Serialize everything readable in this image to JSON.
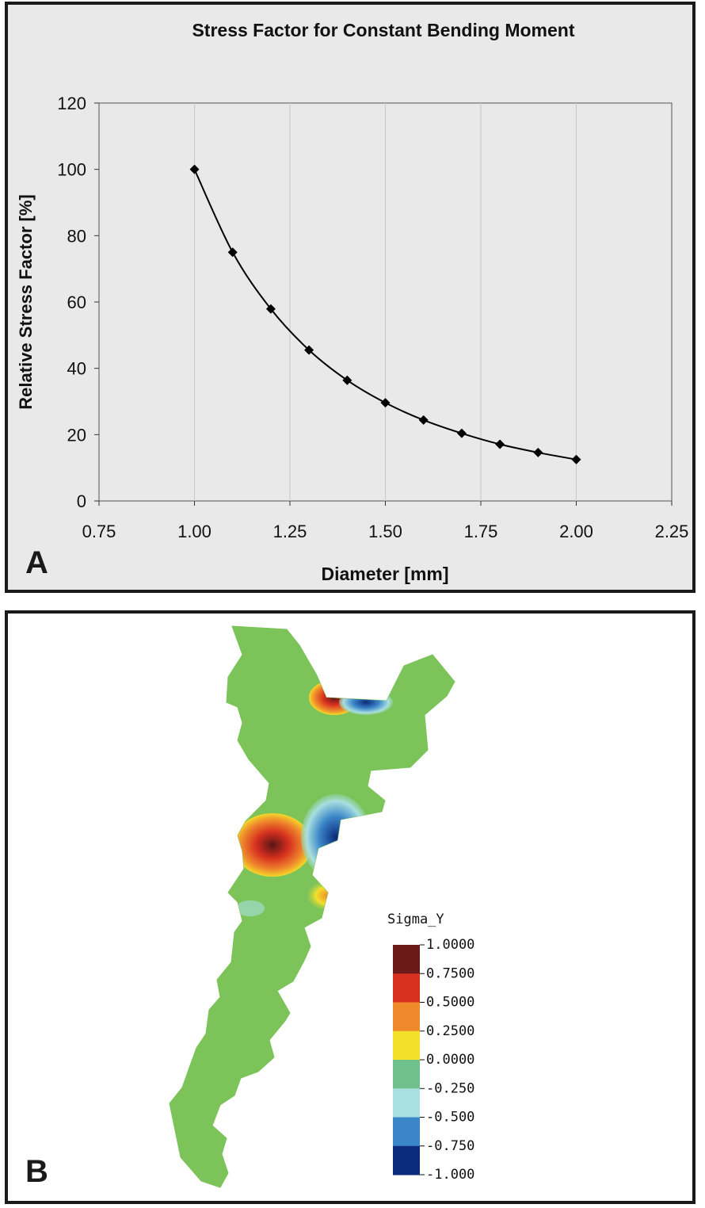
{
  "panels": {
    "a_label": "A",
    "b_label": "B"
  },
  "chart_data": {
    "type": "line",
    "title": "Stress Factor for Constant Bending Moment",
    "xlabel": "Diameter [mm]",
    "ylabel": "Relative Stress Factor [%]",
    "xlim": [
      0.75,
      2.25
    ],
    "ylim": [
      0,
      120
    ],
    "xticks": [
      "0.75",
      "1.00",
      "1.25",
      "1.50",
      "1.75",
      "2.00",
      "2.25"
    ],
    "yticks": [
      "0",
      "20",
      "40",
      "60",
      "80",
      "100",
      "120"
    ],
    "grid": "vertical",
    "x": [
      1.0,
      1.1,
      1.2,
      1.3,
      1.4,
      1.5,
      1.6,
      1.7,
      1.8,
      1.9,
      2.0
    ],
    "y": [
      100,
      75,
      57.9,
      45.5,
      36.4,
      29.6,
      24.4,
      20.4,
      17.1,
      14.6,
      12.5
    ],
    "marker": "diamond",
    "line_color": "#000000"
  },
  "contour": {
    "legend_title": "Sigma_Y",
    "legend_values": [
      "1.0000",
      "0.7500",
      "0.5000",
      "0.2500",
      "0.0000",
      "-0.250",
      "-0.500",
      "-0.750",
      "-1.000"
    ],
    "legend_colors": [
      "#6b1a1a",
      "#d7301f",
      "#ef8a2c",
      "#f3e02a",
      "#7cc35a",
      "#6fc08a",
      "#a9dfe0",
      "#3a86c8",
      "#0c2a7a"
    ],
    "base_color": "#7cc35a"
  }
}
